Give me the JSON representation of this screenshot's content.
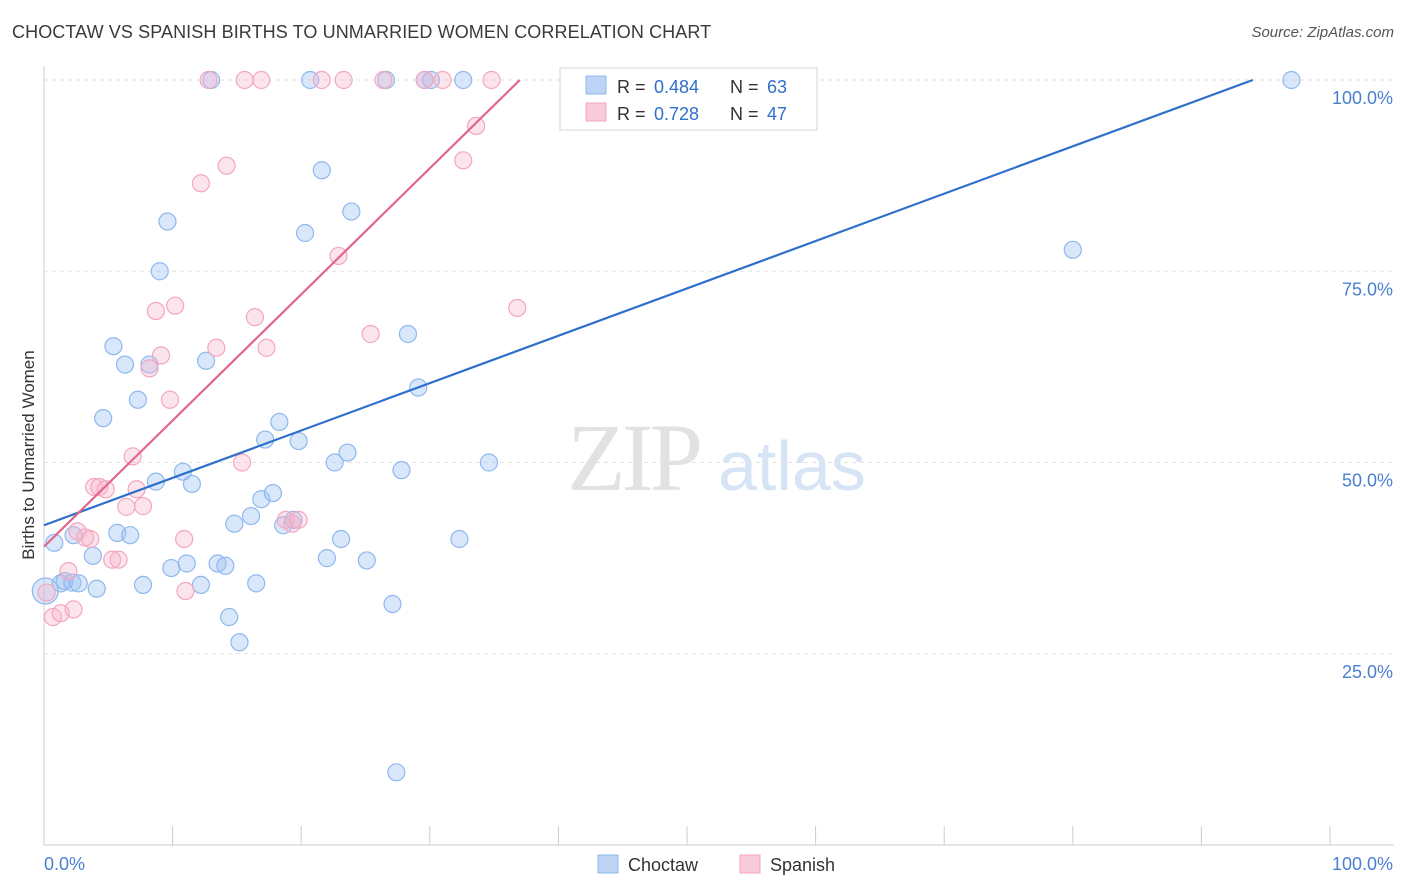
{
  "chart_data": {
    "type": "scatter",
    "title": "CHOCTAW VS SPANISH BIRTHS TO UNMARRIED WOMEN CORRELATION CHART",
    "source": "Source: ZipAtlas.com",
    "xlabel": "",
    "ylabel": "Births to Unmarried Women",
    "xlim": [
      0,
      100
    ],
    "ylim": [
      0,
      100
    ],
    "x_tick_labels": [
      "0.0%",
      "100.0%"
    ],
    "y_tick_labels": [
      "25.0%",
      "50.0%",
      "75.0%",
      "100.0%"
    ],
    "y_ticks": [
      25,
      50,
      75,
      100
    ],
    "grid": true,
    "legend_position": "bottom",
    "watermark": {
      "zip": "ZIP",
      "atlas": "atlas"
    },
    "stats_box": [
      {
        "r_label": "R =",
        "r_value": "0.484",
        "n_label": "N =",
        "n_value": "63"
      },
      {
        "r_label": "R =",
        "r_value": "0.728",
        "n_label": "N =",
        "n_value": "47"
      }
    ],
    "series": [
      {
        "name": "Choctaw",
        "color": "#8fb8ee",
        "line_color": "#2f6fcc",
        "trend": [
          [
            0,
            41.8
          ],
          [
            94,
            100
          ]
        ],
        "points": [
          [
            0.1,
            33.2
          ],
          [
            0.8,
            39.5
          ],
          [
            1.3,
            34.2
          ],
          [
            1.6,
            34.5
          ],
          [
            2.2,
            34.3
          ],
          [
            2.3,
            40.5
          ],
          [
            2.7,
            34.2
          ],
          [
            3.8,
            37.8
          ],
          [
            4.1,
            33.5
          ],
          [
            4.6,
            55.8
          ],
          [
            5.4,
            65.2
          ],
          [
            5.7,
            40.8
          ],
          [
            6.3,
            62.8
          ],
          [
            6.7,
            40.5
          ],
          [
            7.3,
            58.2
          ],
          [
            7.7,
            34.0
          ],
          [
            8.2,
            62.8
          ],
          [
            8.7,
            47.5
          ],
          [
            9.0,
            75.0
          ],
          [
            9.6,
            81.5
          ],
          [
            9.9,
            36.2
          ],
          [
            10.8,
            48.8
          ],
          [
            11.1,
            36.8
          ],
          [
            11.5,
            47.2
          ],
          [
            12.2,
            34.0
          ],
          [
            12.6,
            63.3
          ],
          [
            13.0,
            100
          ],
          [
            13.5,
            36.8
          ],
          [
            14.1,
            36.5
          ],
          [
            14.4,
            29.8
          ],
          [
            14.8,
            42.0
          ],
          [
            15.2,
            26.5
          ],
          [
            16.1,
            43.0
          ],
          [
            16.5,
            34.2
          ],
          [
            16.9,
            45.2
          ],
          [
            17.2,
            53.0
          ],
          [
            17.8,
            46.0
          ],
          [
            18.3,
            55.3
          ],
          [
            18.6,
            41.8
          ],
          [
            19.4,
            42.5
          ],
          [
            19.8,
            52.8
          ],
          [
            20.3,
            80.0
          ],
          [
            20.7,
            100
          ],
          [
            21.6,
            88.2
          ],
          [
            22.0,
            37.5
          ],
          [
            22.6,
            50.0
          ],
          [
            23.1,
            40.0
          ],
          [
            23.6,
            51.3
          ],
          [
            23.9,
            82.8
          ],
          [
            25.1,
            37.2
          ],
          [
            26.6,
            100
          ],
          [
            27.1,
            31.5
          ],
          [
            27.4,
            9.5
          ],
          [
            27.8,
            49.0
          ],
          [
            28.3,
            66.8
          ],
          [
            29.1,
            59.8
          ],
          [
            29.6,
            100
          ],
          [
            30.1,
            100
          ],
          [
            32.3,
            40.0
          ],
          [
            32.6,
            100
          ],
          [
            34.6,
            50.0
          ],
          [
            80.0,
            77.8
          ],
          [
            97.0,
            100
          ]
        ]
      },
      {
        "name": "Spanish",
        "color": "#f4a6bf",
        "line_color": "#e0668c",
        "trend": [
          [
            0,
            39.0
          ],
          [
            37,
            100
          ]
        ],
        "points": [
          [
            0.2,
            33.0
          ],
          [
            0.7,
            29.8
          ],
          [
            1.3,
            30.3
          ],
          [
            1.9,
            35.8
          ],
          [
            2.3,
            30.8
          ],
          [
            2.6,
            41.0
          ],
          [
            3.2,
            40.2
          ],
          [
            3.6,
            40.0
          ],
          [
            3.9,
            46.8
          ],
          [
            4.3,
            46.8
          ],
          [
            4.8,
            46.5
          ],
          [
            5.3,
            37.3
          ],
          [
            5.8,
            37.3
          ],
          [
            6.4,
            44.2
          ],
          [
            6.9,
            50.8
          ],
          [
            7.2,
            46.5
          ],
          [
            7.7,
            44.3
          ],
          [
            8.2,
            62.3
          ],
          [
            8.7,
            69.8
          ],
          [
            9.1,
            64.0
          ],
          [
            9.8,
            58.2
          ],
          [
            10.2,
            70.5
          ],
          [
            10.9,
            40.0
          ],
          [
            11.0,
            33.2
          ],
          [
            12.2,
            86.5
          ],
          [
            12.8,
            100
          ],
          [
            13.4,
            65.0
          ],
          [
            14.2,
            88.8
          ],
          [
            15.4,
            50.0
          ],
          [
            15.6,
            100
          ],
          [
            16.4,
            69.0
          ],
          [
            16.9,
            100
          ],
          [
            17.3,
            65.0
          ],
          [
            18.8,
            42.5
          ],
          [
            19.3,
            42.0
          ],
          [
            19.8,
            42.5
          ],
          [
            21.6,
            100
          ],
          [
            22.9,
            77.0
          ],
          [
            23.3,
            100
          ],
          [
            25.4,
            66.8
          ],
          [
            26.4,
            100
          ],
          [
            29.6,
            100
          ],
          [
            31.0,
            100
          ],
          [
            32.6,
            89.5
          ],
          [
            33.6,
            94.0
          ],
          [
            34.8,
            100
          ],
          [
            36.8,
            70.2
          ]
        ]
      }
    ]
  }
}
